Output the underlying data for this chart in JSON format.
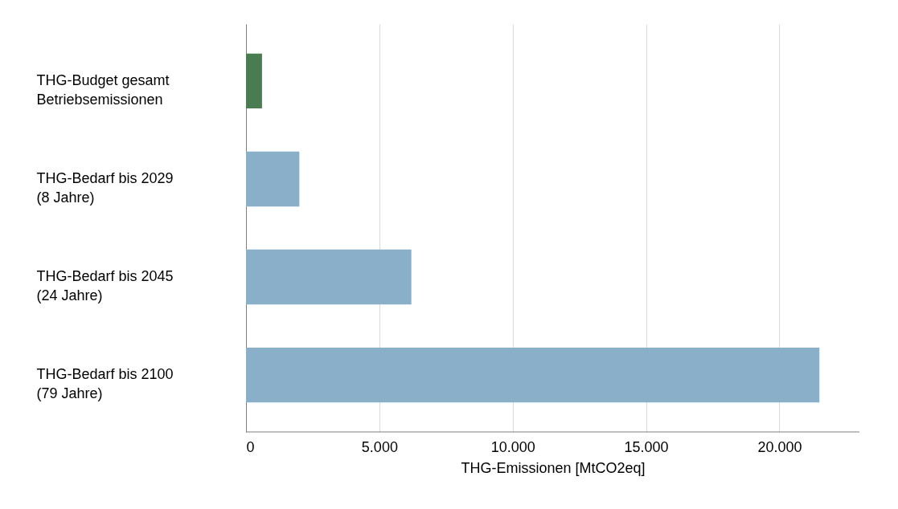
{
  "chart_data": {
    "type": "bar",
    "orientation": "horizontal",
    "categories": [
      "THG-Budget gesamt\nBetriebsemissionen",
      "THG-Bedarf bis 2029\n(8 Jahre)",
      "THG-Bedarf bis 2045\n(24 Jahre)",
      "THG-Bedarf bis 2100\n(79 Jahre)"
    ],
    "values": [
      600,
      2000,
      6200,
      21500
    ],
    "colors": [
      "#4a7c52",
      "#8aafc9",
      "#8aafc9",
      "#8aafc9"
    ],
    "xlabel": "THG-Emissionen [MtCO2eq]",
    "xlim": [
      0,
      23000
    ],
    "xticks": [
      0,
      {
        "value": 5000,
        "label": "5.000"
      },
      {
        "value": 10000,
        "label": "10.000"
      },
      {
        "value": 15000,
        "label": "15.000"
      },
      {
        "value": 20000,
        "label": "20.000"
      }
    ],
    "grid": "x"
  }
}
